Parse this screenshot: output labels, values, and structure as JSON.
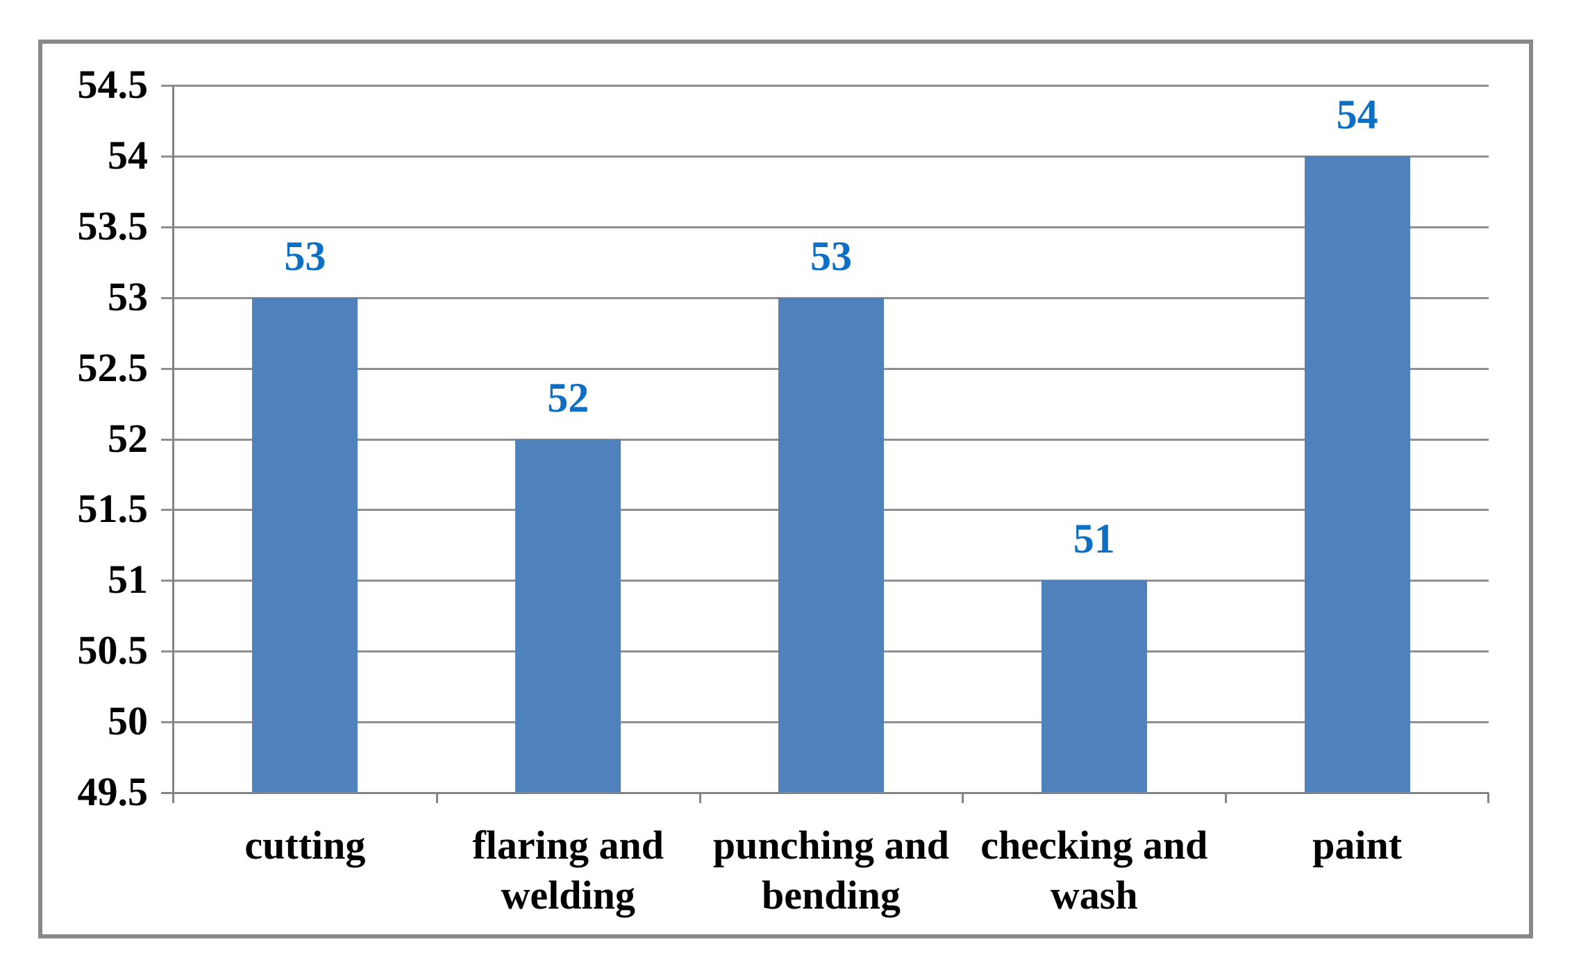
{
  "chart_data": {
    "type": "bar",
    "title": "",
    "categories": [
      "cutting",
      "flaring and welding",
      "punching and bending",
      "checking and wash",
      "paint"
    ],
    "values": [
      53,
      52,
      53,
      51,
      54
    ],
    "data_labels": [
      "53",
      "52",
      "53",
      "51",
      "54"
    ],
    "ylim": [
      49.5,
      54.5
    ],
    "ytick_step": 0.5,
    "ytick_labels": [
      "54.5",
      "54",
      "53.5",
      "53",
      "52.5",
      "52",
      "51.5",
      "51",
      "50.5",
      "50",
      "49.5"
    ],
    "grid": true,
    "legend": false,
    "bar_color": "#4F81BD",
    "data_label_color": "#0D70C4",
    "gridline_color": "#8F8F8F",
    "axis_color": "#848484",
    "frame_border_color": "#898989",
    "tick_label_color": "#000000"
  }
}
